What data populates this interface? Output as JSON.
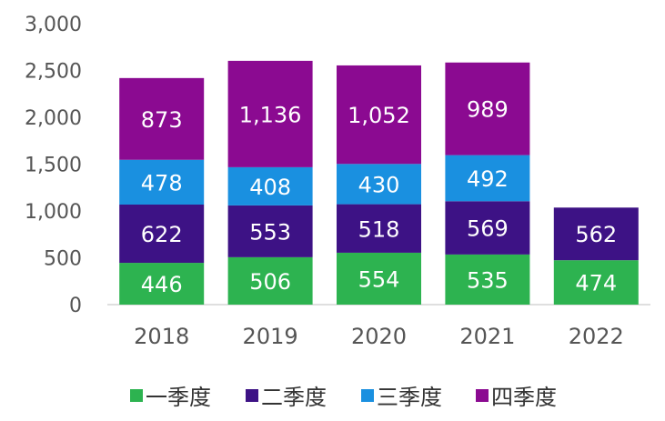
{
  "chart_data": {
    "type": "bar",
    "stacked": true,
    "categories": [
      "2018",
      "2019",
      "2020",
      "2021",
      "2022"
    ],
    "series": [
      {
        "name": "一季度",
        "color": "#2db350",
        "values": [
          446,
          506,
          554,
          535,
          474
        ],
        "labels": [
          "446",
          "506",
          "554",
          "535",
          "474"
        ]
      },
      {
        "name": "二季度",
        "color": "#3d1285",
        "values": [
          622,
          553,
          518,
          569,
          562
        ],
        "labels": [
          "622",
          "553",
          "518",
          "569",
          "562"
        ]
      },
      {
        "name": "三季度",
        "color": "#1a90e0",
        "values": [
          478,
          408,
          430,
          492,
          null
        ],
        "labels": [
          "478",
          "408",
          "430",
          "492",
          null
        ]
      },
      {
        "name": "四季度",
        "color": "#8b0a91",
        "values": [
          873,
          1136,
          1052,
          989,
          null
        ],
        "labels": [
          "873",
          "1,136",
          "1,052",
          "989",
          null
        ]
      }
    ],
    "ylim": [
      0,
      3000
    ],
    "yticks": [
      0,
      500,
      1000,
      1500,
      2000,
      2500,
      3000
    ],
    "ytick_labels": [
      "0",
      "500",
      "1,000",
      "1,500",
      "2,000",
      "2,500",
      "3,000"
    ],
    "title": "",
    "xlabel": "",
    "ylabel": "",
    "grid": false,
    "legend_position": "bottom"
  }
}
